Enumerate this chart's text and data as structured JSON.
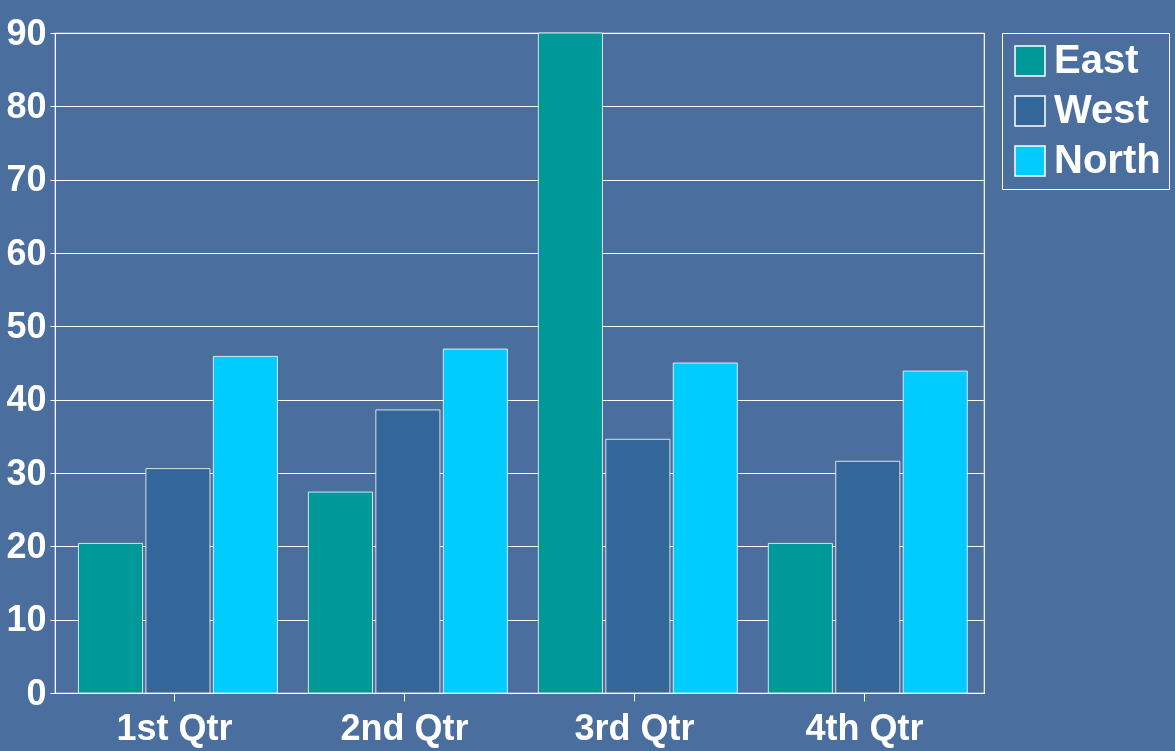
{
  "chart_data": {
    "type": "bar",
    "categories": [
      "1st Qtr",
      "2nd Qtr",
      "3rd Qtr",
      "4th Qtr"
    ],
    "series": [
      {
        "name": "East",
        "color": "#009999",
        "values": [
          20.4,
          27.4,
          90,
          20.4
        ]
      },
      {
        "name": "West",
        "color": "#336699",
        "values": [
          30.6,
          38.6,
          34.6,
          31.6
        ]
      },
      {
        "name": "North",
        "color": "#00ccff",
        "values": [
          45.9,
          46.9,
          45,
          43.9
        ]
      }
    ],
    "ylim": [
      0,
      90
    ],
    "yticks": [
      0,
      10,
      20,
      30,
      40,
      50,
      60,
      70,
      80,
      90
    ],
    "grid": "y",
    "legend": "right"
  }
}
